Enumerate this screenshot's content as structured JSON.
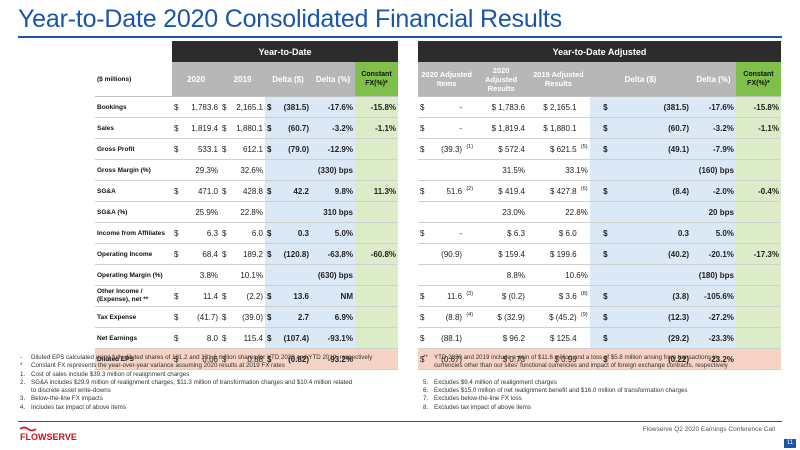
{
  "page": {
    "title": "Year-to-Date 2020 Consolidated Financial Results",
    "footer": "Flowserve Q2 2020 Earnings Conference Call",
    "page_number": "11",
    "logo_text": "FLOWSERVE"
  },
  "left": {
    "banner": "Year-to-Date",
    "unit_label": "($ millions)",
    "columns": [
      "2020",
      "2019",
      "Delta ($)",
      "Delta (%)",
      "Constant FX(%)*"
    ]
  },
  "right": {
    "banner": "Year-to-Date Adjusted",
    "columns": [
      "2020 Adjusted Items",
      "2020 Adjusted Results",
      "2019 Adjusted Results",
      "Delta ($)",
      "Delta (%)",
      "Constant FX(%)*"
    ]
  },
  "rows": [
    {
      "label": "Bookings",
      "s20": "$",
      "v20": "1,783.6",
      "s19": "$",
      "v19": "2,165.1",
      "sd": "$",
      "vd": "(381.5)",
      "dp": "-17.6%",
      "fx": "-15.8%",
      "as": "$",
      "ai": "-",
      "an": "",
      "a20": "$ 1,783.6",
      "a19": "$ 2,165.1",
      "bn": "",
      "rsd": "$",
      "rvd": "(381.5)",
      "rdp": "-17.6%",
      "rfx": "-15.8%"
    },
    {
      "label": "Sales",
      "s20": "$",
      "v20": "1,819.4",
      "s19": "$",
      "v19": "1,880.1",
      "sd": "$",
      "vd": "(60.7)",
      "dp": "-3.2%",
      "fx": "-1.1%",
      "as": "$",
      "ai": "-",
      "an": "",
      "a20": "$ 1,819.4",
      "a19": "$ 1,880.1",
      "bn": "",
      "rsd": "$",
      "rvd": "(60.7)",
      "rdp": "-3.2%",
      "rfx": "-1.1%"
    },
    {
      "label": "Gross Profit",
      "s20": "$",
      "v20": "533.1",
      "s19": "$",
      "v19": "612.1",
      "sd": "$",
      "vd": "(79.0)",
      "dp": "-12.9%",
      "fx": "",
      "as": "$",
      "ai": "(39.3)",
      "an": "(1)",
      "a20": "$ 572.4",
      "a19": "$ 621.5",
      "bn": "(5)",
      "rsd": "$",
      "rvd": "(49.1)",
      "rdp": "-7.9%",
      "rfx": ""
    },
    {
      "label": "Gross Margin (%)",
      "bps": true,
      "v20": "29.3%",
      "v19": "32.6%",
      "vd": "(330) bps",
      "a20": "31.5%",
      "a19": "33.1%",
      "rvd": "(160) bps"
    },
    {
      "label": "SG&A",
      "s20": "$",
      "v20": "471.0",
      "s19": "$",
      "v19": "428.8",
      "sd": "$",
      "vd": "42.2",
      "dp": "9.8%",
      "fx": "11.3%",
      "as": "$",
      "ai": "51.6",
      "an": "(2)",
      "a20": "$ 419.4",
      "a19": "$ 427.8",
      "bn": "(6)",
      "rsd": "$",
      "rvd": "(8.4)",
      "rdp": "-2.0%",
      "rfx": "-0.4%"
    },
    {
      "label": "SG&A (%)",
      "bps": true,
      "v20": "25.9%",
      "v19": "22.8%",
      "vd": "310 bps",
      "a20": "23.0%",
      "a19": "22.8%",
      "rvd": "20 bps"
    },
    {
      "label": "Income from Affiliates",
      "s20": "$",
      "v20": "6.3",
      "s19": "$",
      "v19": "6.0",
      "sd": "$",
      "vd": "0.3",
      "dp": "5.0%",
      "fx": "",
      "as": "$",
      "ai": "-",
      "an": "",
      "a20": "$ 6.3",
      "a19": "$ 6.0",
      "bn": "",
      "rsd": "$",
      "rvd": "0.3",
      "rdp": "5.0%",
      "rfx": ""
    },
    {
      "label": "Operating Income",
      "s20": "$",
      "v20": "68.4",
      "s19": "$",
      "v19": "189.2",
      "sd": "$",
      "vd": "(120.8)",
      "dp": "-63.8%",
      "fx": "-60.8%",
      "as": "",
      "ai": "(90.9)",
      "an": "",
      "a20": "$ 159.4",
      "a19": "$ 199.6",
      "bn": "",
      "rsd": "$",
      "rvd": "(40.2)",
      "rdp": "-20.1%",
      "rfx": "-17.3%"
    },
    {
      "label": "Operating Margin (%)",
      "bps": true,
      "v20": "3.8%",
      "v19": "10.1%",
      "vd": "(630) bps",
      "a20": "8.8%",
      "a19": "10.6%",
      "rvd": "(180) bps"
    },
    {
      "label": "Other Income / (Expense), net **",
      "small": true,
      "s20": "$",
      "v20": "11.4",
      "s19": "$",
      "v19": "(2.2)",
      "sd": "$",
      "vd": "13.6",
      "dp": "NM",
      "fx": "",
      "as": "$",
      "ai": "11.6",
      "an": "(3)",
      "a20": "$ (0.2)",
      "a19": "$ 3.6",
      "bn": "(8)",
      "rsd": "$",
      "rvd": "(3.8)",
      "rdp": "-105.6%",
      "rfx": ""
    },
    {
      "label": "Tax Expense",
      "s20": "$",
      "v20": "(41.7)",
      "s19": "$",
      "v19": "(39.0)",
      "sd": "$",
      "vd": "2.7",
      "dp": "6.9%",
      "fx": "",
      "as": "$",
      "ai": "(8.8)",
      "an": "(4)",
      "a20": "$ (32.9)",
      "a19": "$ (45.2)",
      "bn": "(9)",
      "rsd": "$",
      "rvd": "(12.3)",
      "rdp": "-27.2%",
      "rfx": ""
    },
    {
      "label": "Net Earnings",
      "s20": "$",
      "v20": "8.0",
      "s19": "$",
      "v19": "115.4",
      "sd": "$",
      "vd": "(107.4)",
      "dp": "-93.1%",
      "fx": "",
      "as": "$",
      "ai": "(88.1)",
      "an": "",
      "a20": "$ 96.2",
      "a19": "$ 125.4",
      "bn": "",
      "rsd": "$",
      "rvd": "(29.2)",
      "rdp": "-23.3%",
      "rfx": ""
    },
    {
      "label": "Diluted EPS",
      "eps": true,
      "s20": "$",
      "v20": "0.06",
      "s19": "$",
      "v19": "0.88",
      "sd": "$",
      "vd": "(0.82)",
      "dp": "-93.2%",
      "fx": "",
      "as": "$",
      "ai": "(0.67)",
      "an": "",
      "a20": "$ 0.73",
      "a19": "$ 0.95",
      "bn": "",
      "rsd": "$",
      "rvd": "(0.22)",
      "rdp": "-23.2%",
      "rfx": ""
    }
  ],
  "notes_left": [
    {
      "prefix": "-",
      "text": "Diluted EPS calculated using fully diluted shares of 131.2 and 131.6 million shares for YTD 2020 and YTD 2019, respectively"
    },
    {
      "prefix": "*",
      "text": "Constant FX represents the year-over-year variance assuming 2020 results at 2019 FX rates"
    },
    {
      "prefix": "1.",
      "text": "Cost of sales include $39.3 million of realignment charges"
    },
    {
      "prefix": "2.",
      "text": "SG&A includes $29.9 million of realignment charges, $11.3 million of transformation charges and $10.4 million related"
    },
    {
      "prefix": "",
      "text": "to discrete asset write-downs"
    },
    {
      "prefix": "3.",
      "text": "Below-the-line FX impacts"
    },
    {
      "prefix": "4.",
      "text": "Includes tax impact of above items"
    }
  ],
  "notes_right": [
    {
      "prefix": "**",
      "text": "YTD 2020 and 2019 include a gain of $11.6 million and a loss of $5.8 million arising from transactions in"
    },
    {
      "prefix": "",
      "text": "currencies other than our sites' functional currencies and impact of foreign exchange contracts, respectively"
    },
    {
      "prefix": "",
      "text": ""
    },
    {
      "prefix": "5.",
      "text": "Excludes $9.4 million of realignment charges"
    },
    {
      "prefix": "6.",
      "text": "Excludes $15.0 million of net realignment benefit and $16.0 million of transformation charges"
    },
    {
      "prefix": "7.",
      "text": "Excludes below-the-line FX loss"
    },
    {
      "prefix": "8.",
      "text": "Excludes tax impact of above items"
    }
  ],
  "colors": {
    "brand_blue": "#1a56a8",
    "header_dark": "#2c2c2c",
    "header_gray": "#b7b7b7",
    "header_green": "#7ec04a",
    "delta_blue": "#dbe9f7",
    "fx_green": "#dcebc8",
    "eps_row": "#f6d3c4"
  }
}
